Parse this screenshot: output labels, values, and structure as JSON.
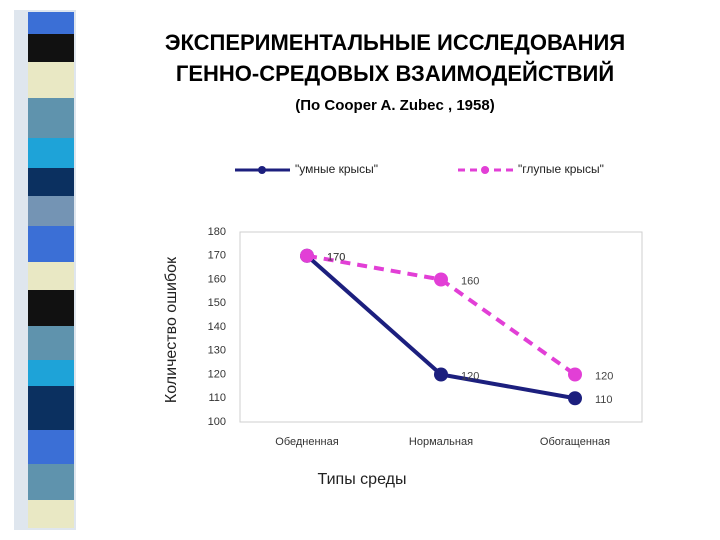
{
  "chart_data": {
    "type": "line",
    "title": [
      "ЭКСПЕРИМЕНТАЛЬНЫЕ ИССЛЕДОВАНИЯ",
      "ГЕННО-СРЕДОВЫХ ВЗАИМОДЕЙСТВИЙ"
    ],
    "subtitle": "(По Cooper A. Zubec , 1958)",
    "x_label": "Типы среды",
    "y_label": "Количество ошибок",
    "categories": [
      "Обедненная",
      "Нормальная",
      "Обогащенная"
    ],
    "series": [
      {
        "name": "\"умные крысы\"",
        "color": "#1c1f7e",
        "dashed": false,
        "values": [
          170,
          120,
          110
        ]
      },
      {
        "name": "\"глупые крысы\"",
        "color": "#e23fd6",
        "dashed": true,
        "values": [
          170,
          160,
          120
        ]
      }
    ],
    "ylim": [
      100,
      180
    ],
    "yticks": [
      100,
      110,
      120,
      130,
      140,
      150,
      160,
      170,
      180
    ],
    "grid": false,
    "legend": "top"
  }
}
